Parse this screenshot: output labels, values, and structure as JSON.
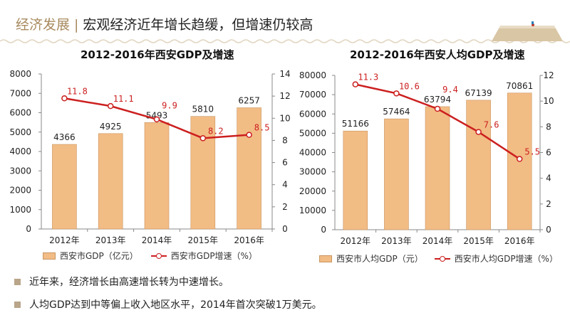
{
  "header": {
    "section": "经济发展",
    "separator": "|",
    "title": "宏观经济近年增长趋缓，但增速仍较高"
  },
  "colors": {
    "bar": "#f2bc85",
    "bar_border": "#c99561",
    "line": "#cc1f1f",
    "accent": "#a88a5e"
  },
  "chart_data": [
    {
      "type": "bar+line",
      "title": "2012-2016年西安GDP及增速",
      "categories": [
        "2012年",
        "2013年",
        "2014年",
        "2015年",
        "2016年"
      ],
      "series": [
        {
          "name": "西安市GDP（亿元）",
          "type": "bar",
          "axis": "left",
          "values": [
            4366,
            4925,
            5493,
            5810,
            6257
          ]
        },
        {
          "name": "西安市GDP增速（%）",
          "type": "line",
          "axis": "right",
          "values": [
            11.8,
            11.1,
            9.9,
            8.2,
            8.5
          ]
        }
      ],
      "ylim_left": [
        0,
        8000
      ],
      "yticks_left": [
        0,
        1000,
        2000,
        3000,
        4000,
        5000,
        6000,
        7000,
        8000
      ],
      "ylim_right": [
        0,
        14
      ],
      "yticks_right": [
        0,
        2,
        4,
        6,
        8,
        10,
        12,
        14
      ],
      "legend": "bottom",
      "grid": false
    },
    {
      "type": "bar+line",
      "title": "2012-2016年西安人均GDP及增速",
      "categories": [
        "2012年",
        "2013年",
        "2014年",
        "2015年",
        "2016年"
      ],
      "series": [
        {
          "name": "西安市人均GDP（元）",
          "type": "bar",
          "axis": "left",
          "values": [
            51166,
            57464,
            63794,
            67139,
            70861
          ]
        },
        {
          "name": "西安市人均GDP增速（%）",
          "type": "line",
          "axis": "right",
          "values": [
            11.3,
            10.6,
            9.4,
            7.6,
            5.5
          ]
        }
      ],
      "ylim_left": [
        0,
        80000
      ],
      "yticks_left": [
        0,
        10000,
        20000,
        30000,
        40000,
        50000,
        60000,
        70000,
        80000
      ],
      "ylim_right": [
        0,
        12
      ],
      "yticks_right": [
        0,
        2,
        4,
        6,
        8,
        10,
        12
      ],
      "legend": "bottom",
      "grid": false
    }
  ],
  "bullets": [
    "近年来，经济增长由高速增长转为中速增长。",
    "人均GDP达到中等偏上收入地区水平，2014年首次突破1万美元。"
  ]
}
